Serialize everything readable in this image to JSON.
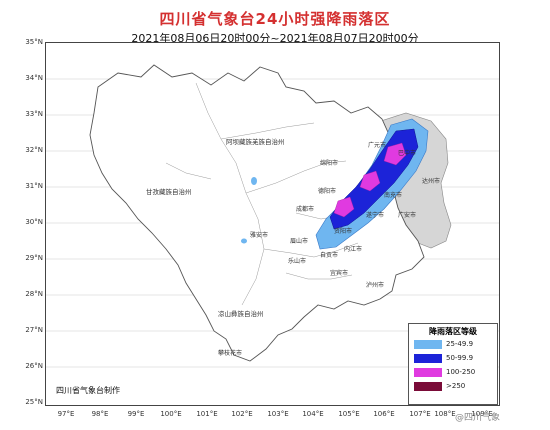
{
  "title": "四川省气象台24小时强降雨落区",
  "subtitle": "2021年08月06日20时00分~2021年08月07日20时00分",
  "axes": {
    "lat_ticks": [
      "35°N",
      "34°N",
      "33°N",
      "32°N",
      "31°N",
      "30°N",
      "29°N",
      "28°N",
      "27°N",
      "26°N",
      "25°N"
    ],
    "lon_ticks": [
      "97°E",
      "98°E",
      "99°E",
      "100°E",
      "101°E",
      "102°E",
      "103°E",
      "104°E",
      "105°E",
      "106°E",
      "107°E",
      "108°E",
      "109°E"
    ]
  },
  "regions": [
    "阿坝藏族羌族自治州",
    "甘孜藏族自治州",
    "凉山彝族自治州"
  ],
  "cities": [
    "绵阳市",
    "广元市",
    "巴中市",
    "南充市",
    "达州市",
    "德阳市",
    "成都市",
    "遂宁市",
    "资阳市",
    "内江市",
    "自贡市",
    "乐山市",
    "雅安市",
    "宜宾市",
    "泸州市",
    "眉山市",
    "广安市",
    "攀枝花市"
  ],
  "legend": {
    "title": "降雨落区等级",
    "items": [
      {
        "label": "25-49.9",
        "color": "#6fb6f0"
      },
      {
        "label": "50-99.9",
        "color": "#1c23d8"
      },
      {
        "label": "100-250",
        "color": "#e03ae0"
      },
      {
        "label": ">250",
        "color": "#7a0b38"
      }
    ]
  },
  "agency": "四川省气象台制作",
  "watermark": "@四川气象",
  "colors": {
    "title": "#d43030",
    "province_fill": "#ffffff",
    "outside_fill": "#d6d6d6",
    "border": "#666666"
  }
}
